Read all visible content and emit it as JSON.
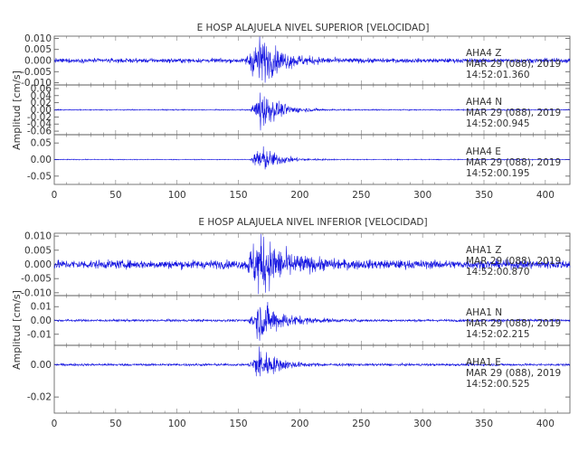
{
  "chart_data": [
    {
      "type": "line",
      "title": "E HOSP ALAJUELA NIVEL SUPERIOR [VELOCIDAD]",
      "ylabel": "Amplitud [cm/s]",
      "xlim": [
        0,
        420
      ],
      "xticks": [
        "0",
        "50",
        "100",
        "150",
        "200",
        "250",
        "300",
        "350",
        "400"
      ],
      "line_color": "#1010e0",
      "grid": false,
      "traces": [
        {
          "channel": "AHA4  Z",
          "date": "MAR 29 (088), 2019",
          "time": "14:52:01.360",
          "ylim": [
            -0.011,
            0.011
          ],
          "yticks": [
            "0.010",
            "0.005",
            "0.000",
            "-0.005",
            "-0.010"
          ],
          "noise": 0.0009,
          "event_amp": 0.0095,
          "event_start": 155,
          "event_peak": 167,
          "decay": 18
        },
        {
          "channel": "AHA4  N",
          "date": "MAR 29 (088), 2019",
          "time": "14:52:00.945",
          "ylim": [
            -0.07,
            0.07
          ],
          "yticks": [
            "0.06",
            "0.04",
            "0.02",
            "0.00",
            "-0.02",
            "-0.04",
            "-0.06"
          ],
          "noise": 0.0015,
          "event_amp": 0.055,
          "event_start": 160,
          "event_peak": 168,
          "decay": 14
        },
        {
          "channel": "AHA4  E",
          "date": "MAR 29 (088), 2019",
          "time": "14:52:00.195",
          "ylim": [
            -0.075,
            0.075
          ],
          "yticks": [
            "0.05",
            "0.00",
            "-0.05"
          ],
          "noise": 0.0012,
          "event_amp": 0.04,
          "event_start": 160,
          "event_peak": 168,
          "decay": 14
        }
      ]
    },
    {
      "type": "line",
      "title": "E HOSP ALAJUELA NIVEL INFERIOR [VELOCIDAD]",
      "ylabel": "Amplitud [cm/s]",
      "xlim": [
        0,
        420
      ],
      "xticks": [
        "0",
        "50",
        "100",
        "150",
        "200",
        "250",
        "300",
        "350",
        "400"
      ],
      "line_color": "#1010e0",
      "grid": false,
      "traces": [
        {
          "channel": "AHA1  Z",
          "date": "MAR 29 (088), 2019",
          "time": "14:52:00.870",
          "ylim": [
            -0.011,
            0.011
          ],
          "yticks": [
            "0.010",
            "0.005",
            "0.000",
            "-0.005",
            "-0.010"
          ],
          "noise": 0.0014,
          "event_amp": 0.0095,
          "event_start": 155,
          "event_peak": 167,
          "decay": 20
        },
        {
          "channel": "AHA1  N",
          "date": "MAR 29 (088), 2019",
          "time": "14:52:02.215",
          "ylim": [
            -0.018,
            0.018
          ],
          "yticks": [
            "0.01",
            "0.00",
            "-0.01"
          ],
          "noise": 0.0008,
          "event_amp": 0.013,
          "event_start": 158,
          "event_peak": 168,
          "decay": 18
        },
        {
          "channel": "AHA1  E",
          "date": "MAR 29 (088), 2019",
          "time": "14:52:00.525",
          "ylim": [
            -0.03,
            0.012
          ],
          "yticks": [
            "0.00",
            "-0.02"
          ],
          "noise": 0.0007,
          "event_amp": 0.01,
          "event_start": 158,
          "event_peak": 167,
          "decay": 14
        }
      ]
    }
  ]
}
